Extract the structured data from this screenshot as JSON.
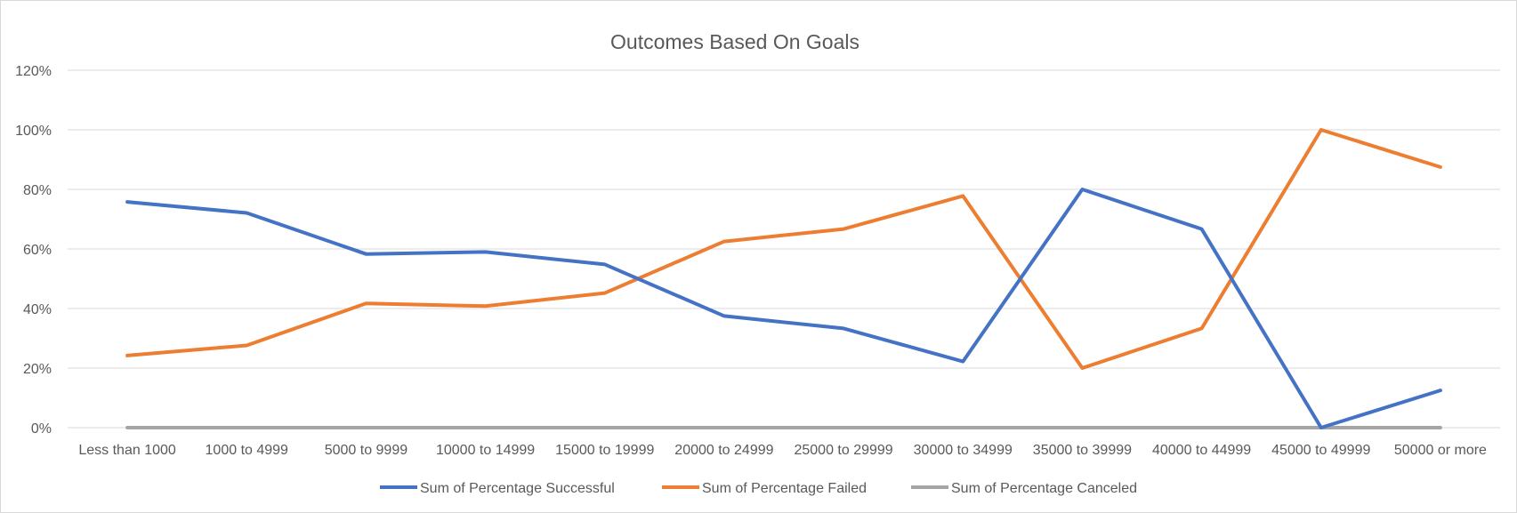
{
  "chart_data": {
    "type": "line",
    "title": "Outcomes Based On Goals",
    "categories": [
      "Less than 1000",
      "1000 to 4999",
      "5000 to 9999",
      "10000 to 14999",
      "15000 to 19999",
      "20000 to 24999",
      "25000 to 29999",
      "30000 to 34999",
      "35000 to 39999",
      "40000 to 44999",
      "45000 to 49999",
      "50000 or more"
    ],
    "series": [
      {
        "name": "Sum of Percentage Successful",
        "color": "#4472C4",
        "values": [
          0.758,
          0.721,
          0.583,
          0.59,
          0.548,
          0.375,
          0.333,
          0.222,
          0.8,
          0.667,
          0.0,
          0.125
        ]
      },
      {
        "name": "Sum of Percentage Failed",
        "color": "#ED7D31",
        "values": [
          0.242,
          0.276,
          0.417,
          0.408,
          0.452,
          0.625,
          0.667,
          0.778,
          0.2,
          0.333,
          1.0,
          0.875
        ]
      },
      {
        "name": "Sum of Percentage Canceled",
        "color": "#A5A5A5",
        "values": [
          0,
          0,
          0,
          0,
          0,
          0,
          0,
          0,
          0,
          0,
          0,
          0
        ]
      }
    ],
    "y_ticks": [
      "0%",
      "20%",
      "40%",
      "60%",
      "80%",
      "100%",
      "120%"
    ],
    "ylim": [
      0,
      1.2
    ],
    "grid": true,
    "legend": "bottom"
  }
}
